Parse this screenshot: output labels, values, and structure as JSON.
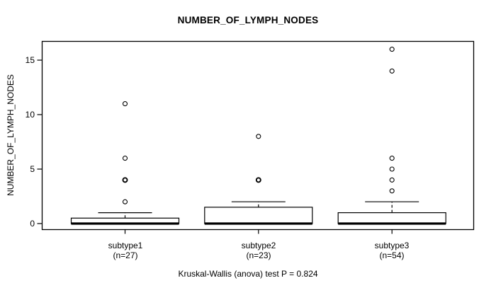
{
  "chart_data": {
    "type": "boxplot",
    "title": "NUMBER_OF_LYMPH_NODES",
    "ylabel": "NUMBER_OF_LYMPH_NODES",
    "caption": "Kruskal-Wallis (anova) test P = 0.824",
    "yticks": [
      0,
      5,
      10,
      15
    ],
    "ylim": [
      0,
      16
    ],
    "grid": false,
    "groups": [
      {
        "label": "subtype1",
        "n_label": "(n=27)",
        "stats": {
          "whisker_low": 0,
          "q1": 0,
          "median": 0,
          "q3": 0.5,
          "whisker_high": 1
        },
        "outliers": [
          {
            "value": 2,
            "bold": false
          },
          {
            "value": 4,
            "bold": true
          },
          {
            "value": 6,
            "bold": false
          },
          {
            "value": 11,
            "bold": false
          }
        ]
      },
      {
        "label": "subtype2",
        "n_label": "(n=23)",
        "stats": {
          "whisker_low": 0,
          "q1": 0,
          "median": 0,
          "q3": 1.5,
          "whisker_high": 2
        },
        "outliers": [
          {
            "value": 4,
            "bold": true
          },
          {
            "value": 8,
            "bold": false
          }
        ]
      },
      {
        "label": "subtype3",
        "n_label": "(n=54)",
        "stats": {
          "whisker_low": 0,
          "q1": 0,
          "median": 0,
          "q3": 1,
          "whisker_high": 2
        },
        "outliers": [
          {
            "value": 3,
            "bold": false
          },
          {
            "value": 4,
            "bold": false
          },
          {
            "value": 5,
            "bold": false
          },
          {
            "value": 6,
            "bold": false
          },
          {
            "value": 14,
            "bold": false
          },
          {
            "value": 16,
            "bold": false
          }
        ]
      }
    ],
    "colors": {
      "line": "#000000",
      "box_fill": "#ffffff",
      "background": "#ffffff",
      "text": "#000000"
    }
  }
}
